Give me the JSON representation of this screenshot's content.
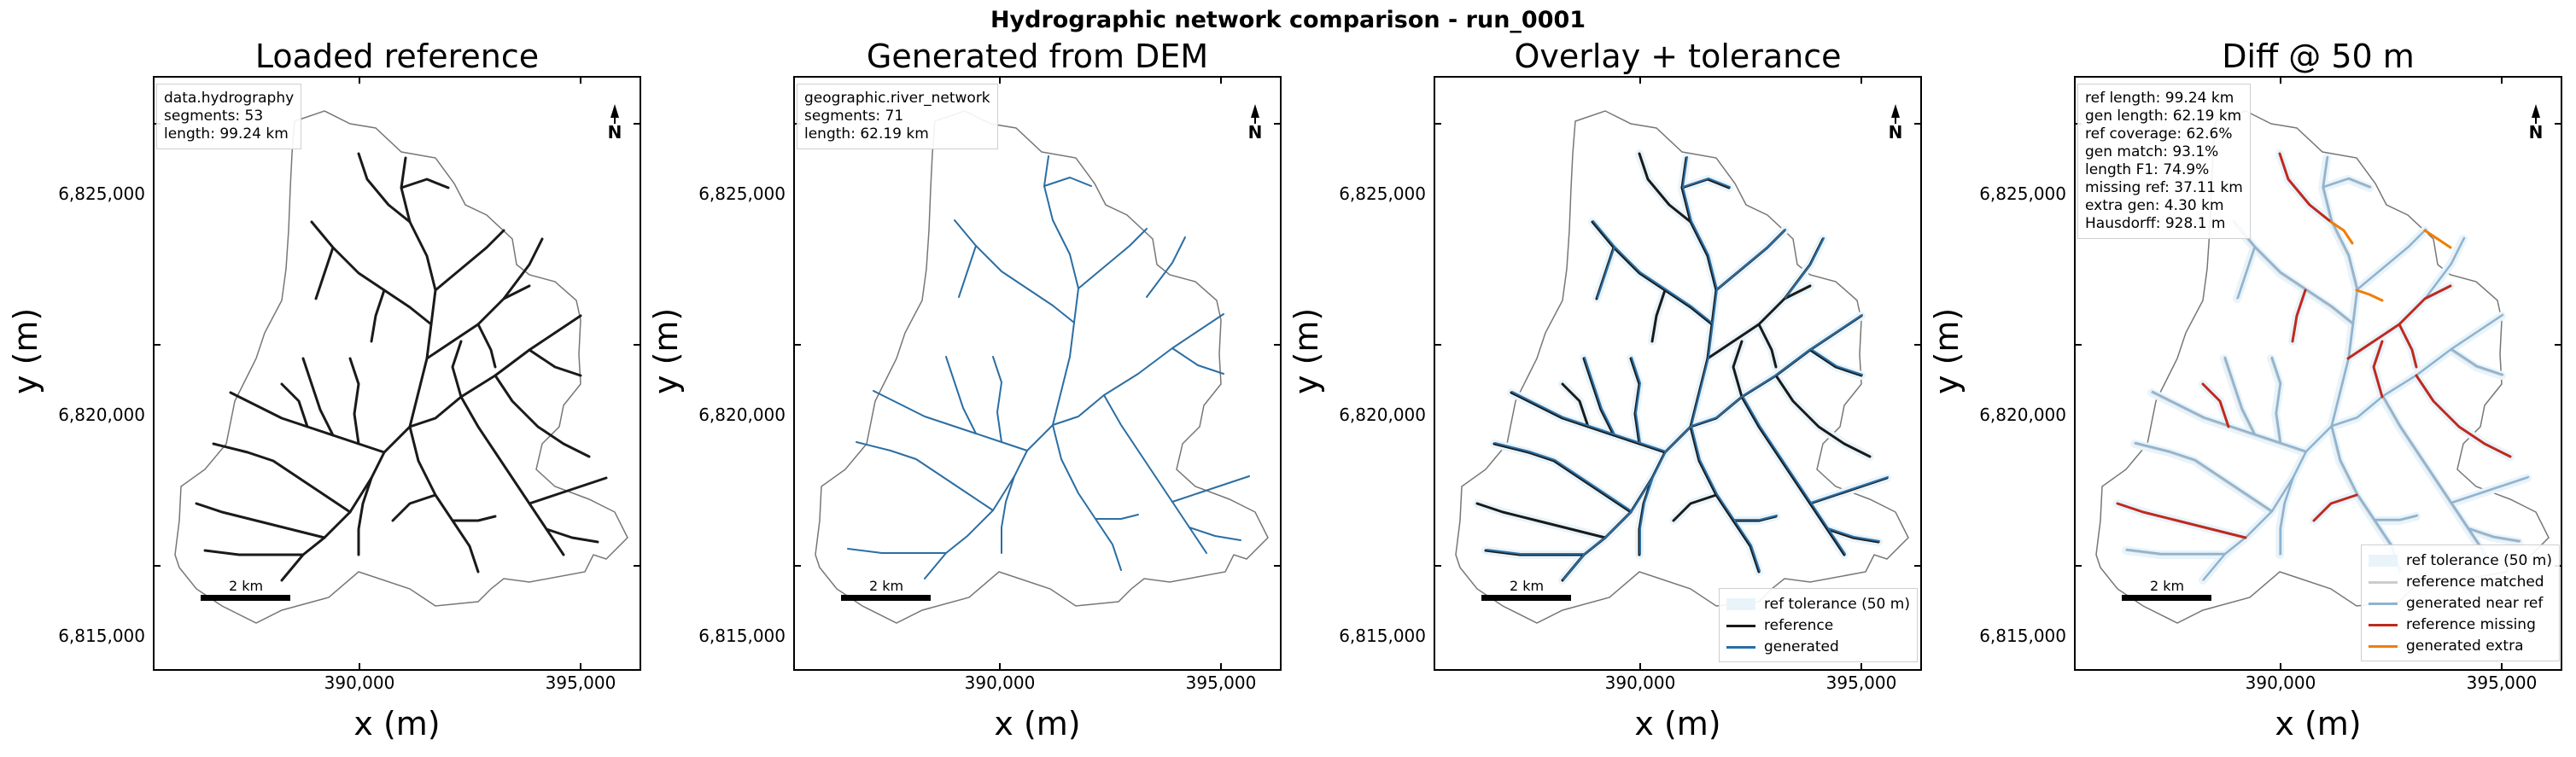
{
  "suptitle": "Hydrographic network comparison - run_0001",
  "north_label": "N",
  "scalebar_label": "2 km",
  "colors": {
    "reference": "#1a1a1a",
    "generated": "#2b6ea3",
    "tolerance": "#e9f4fa",
    "ref_matched": "#cccccc",
    "gen_near_ref": "#8fb3d0",
    "ref_missing": "#c0291e",
    "gen_extra": "#f07d00",
    "outline": "#777777"
  },
  "chart_data": [
    {
      "type": "line",
      "title": "Loaded reference",
      "xlabel": "x (m)",
      "ylabel": "y (m)",
      "xlim": [
        385400,
        396200
      ],
      "ylim": [
        6814300,
        6827700
      ],
      "xticks": [
        "390,000",
        "395,000"
      ],
      "yticks": [
        "6,815,000",
        "6,820,000",
        "6,825,000"
      ],
      "info": [
        "data.hydrography",
        "segments: 53",
        "length: 99.24 km"
      ],
      "series": [
        {
          "values": [],
          "style": "reference"
        }
      ]
    },
    {
      "type": "line",
      "title": "Generated from DEM",
      "xlabel": "x (m)",
      "ylabel": "y (m)",
      "xlim": [
        385400,
        396200
      ],
      "ylim": [
        6814300,
        6827700
      ],
      "xticks": [
        "390,000",
        "395,000"
      ],
      "yticks": [
        "6,815,000",
        "6,820,000",
        "6,825,000"
      ],
      "info": [
        "geographic.river_network",
        "segments: 71",
        "length: 62.19 km"
      ],
      "series": [
        {
          "values": [],
          "style": "generated"
        }
      ]
    },
    {
      "type": "line",
      "title": "Overlay + tolerance",
      "xlabel": "x (m)",
      "ylabel": "y (m)",
      "xlim": [
        385400,
        396200
      ],
      "ylim": [
        6814300,
        6827700
      ],
      "xticks": [
        "390,000",
        "395,000"
      ],
      "yticks": [
        "6,815,000",
        "6,820,000",
        "6,825,000"
      ],
      "legend": [
        "ref tolerance (50 m)",
        "reference",
        "generated"
      ],
      "legend_position": "lower right"
    },
    {
      "type": "line",
      "title": "Diff @ 50 m",
      "xlabel": "x (m)",
      "ylabel": "y (m)",
      "xlim": [
        385400,
        396200
      ],
      "ylim": [
        6814300,
        6827700
      ],
      "xticks": [
        "390,000",
        "395,000"
      ],
      "yticks": [
        "6,815,000",
        "6,820,000",
        "6,825,000"
      ],
      "info": [
        "ref length: 99.24 km",
        "gen length: 62.19 km",
        "ref coverage: 62.6%",
        "gen match: 93.1%",
        "length F1: 74.9%",
        "missing ref: 37.11 km",
        "extra gen: 4.30 km",
        "Hausdorff: 928.1 m"
      ],
      "legend": [
        "ref tolerance (50 m)",
        "reference matched",
        "generated near ref",
        "reference missing",
        "generated extra"
      ],
      "legend_position": "lower right",
      "metrics": {
        "ref_length_km": 99.24,
        "gen_length_km": 62.19,
        "ref_coverage_pct": 62.6,
        "gen_match_pct": 93.1,
        "length_f1_pct": 74.9,
        "missing_ref_km": 37.11,
        "extra_gen_km": 4.3,
        "hausdorff_m": 928.1
      }
    }
  ]
}
